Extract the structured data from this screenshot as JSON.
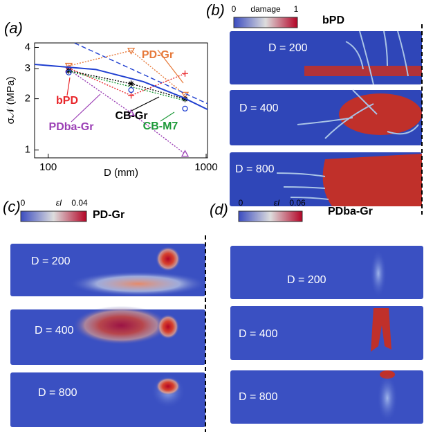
{
  "chart_data": {
    "type": "line",
    "panel_label": "(a)",
    "xlabel": "D (mm)",
    "ylabel": "σ𝒩 (MPa)",
    "xscale": "log",
    "yscale": "log",
    "xlim": [
      82,
      1020
    ],
    "ylim": [
      0.9,
      4.25
    ],
    "xticks": [
      100,
      1000
    ],
    "yticks": [
      1,
      2,
      3,
      4
    ],
    "grid": false,
    "x": [
      135,
      335,
      735
    ],
    "series": [
      {
        "name": "bPD",
        "color": "#e8252a",
        "marker": "plus",
        "linestyle": "dotted",
        "values": [
          3.03,
          2.09,
          2.81
        ]
      },
      {
        "name": "PD-Gr",
        "color": "#e6793a",
        "marker": "triangle-down",
        "linestyle": "dotted",
        "values": [
          3.12,
          3.83,
          2.11
        ]
      },
      {
        "name": "PDba-Gr",
        "color": "#9b3fb5",
        "marker": "triangle-up",
        "linestyle": "dotted",
        "values": [
          2.97,
          1.65,
          0.95
        ]
      },
      {
        "name": "CB-Gr",
        "color": "#000000",
        "marker": "star",
        "linestyle": "dotted",
        "values": [
          2.92,
          2.45,
          1.99
        ]
      },
      {
        "name": "CB-M7",
        "color": "#1e9a3a",
        "marker": "none",
        "linestyle": "dotted",
        "values": [
          2.9,
          2.35,
          1.95
        ]
      },
      {
        "color": "#1f3fd0",
        "marker": "circle",
        "linestyle": "none",
        "values": [
          2.85,
          2.25,
          1.75
        ]
      },
      {
        "color": "#1f3fd0",
        "marker": "none",
        "linestyle": "solid",
        "x": [
          82,
          200,
          400,
          700,
          1020
        ],
        "values": [
          3.18,
          2.97,
          2.52,
          2.05,
          1.73
        ]
      },
      {
        "color": "#1f3fd0",
        "marker": "none",
        "linestyle": "dashed",
        "x": [
          147,
          1020
        ],
        "values": [
          4.24,
          1.87
        ]
      }
    ]
  },
  "panels": [
    {
      "label": "(b)",
      "colorbar_min": 0,
      "colorbar_title": "damage",
      "colorbar_max": 1,
      "model": "bPD",
      "sims": [
        "D = 200",
        "D = 400",
        "D = 800"
      ]
    },
    {
      "label": "(c)",
      "colorbar_min": 0,
      "colorbar_title": "εI",
      "colorbar_max": 0.04,
      "model": "PD-Gr",
      "sims": [
        "D = 200",
        "D = 400",
        "D = 800"
      ]
    },
    {
      "label": "(d)",
      "colorbar_min": 0,
      "colorbar_title": "εI",
      "colorbar_max": 0.06,
      "model": "PDba-Gr",
      "sims": [
        "D = 200",
        "D = 400",
        "D = 800"
      ]
    }
  ]
}
